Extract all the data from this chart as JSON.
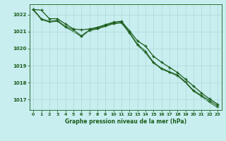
{
  "title": "Graphe pression niveau de la mer (hPa)",
  "background_color": "#c8eef0",
  "grid_color": "#b0d8d8",
  "line_color": "#1a5c1a",
  "xlim": [
    -0.5,
    23.5
  ],
  "ylim": [
    1016.4,
    1022.6
  ],
  "yticks": [
    1017,
    1018,
    1019,
    1020,
    1021,
    1022
  ],
  "xticks": [
    0,
    1,
    2,
    3,
    4,
    5,
    6,
    7,
    8,
    9,
    10,
    11,
    12,
    13,
    14,
    15,
    16,
    17,
    18,
    19,
    20,
    21,
    22,
    23
  ],
  "series1": [
    1022.3,
    1022.25,
    1021.75,
    1021.75,
    1021.45,
    1021.15,
    1021.1,
    1021.15,
    1021.25,
    1021.4,
    1021.55,
    1021.6,
    1021.05,
    1020.45,
    1020.15,
    1019.55,
    1019.2,
    1018.9,
    1018.6,
    1018.2,
    1017.8,
    1017.4,
    1017.05,
    1016.75
  ],
  "series2": [
    1022.3,
    1021.75,
    1021.6,
    1021.65,
    1021.3,
    1021.1,
    1020.75,
    1021.1,
    1021.2,
    1021.35,
    1021.5,
    1021.55,
    1020.95,
    1020.25,
    1019.85,
    1019.2,
    1018.85,
    1018.65,
    1018.45,
    1018.05,
    1017.55,
    1017.25,
    1016.95,
    1016.65
  ],
  "series3": [
    1022.25,
    1021.7,
    1021.55,
    1021.6,
    1021.25,
    1021.0,
    1020.7,
    1021.05,
    1021.15,
    1021.3,
    1021.45,
    1021.5,
    1020.9,
    1020.2,
    1019.75,
    1019.15,
    1018.8,
    1018.6,
    1018.4,
    1018.0,
    1017.5,
    1017.2,
    1016.85,
    1016.55
  ]
}
